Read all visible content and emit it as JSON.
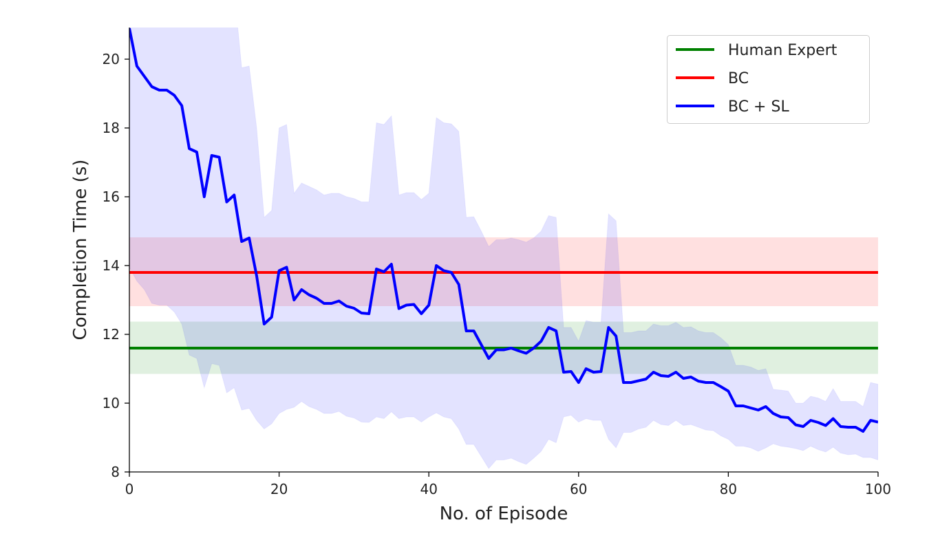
{
  "chart_data": {
    "type": "line",
    "title": "",
    "xlabel": "No. of Episode",
    "ylabel": "Completion Time (s)",
    "xlim": [
      0,
      100
    ],
    "ylim": [
      8,
      20.92
    ],
    "xticks": [
      0,
      20,
      40,
      60,
      80,
      100
    ],
    "yticks": [
      8,
      10,
      12,
      14,
      16,
      18,
      20
    ],
    "grid": false,
    "legend_position": "top-right",
    "colors": {
      "human": "#008000",
      "bc": "#ff0000",
      "bcsl": "#0000ff"
    },
    "constant_series": [
      {
        "name": "Human Expert",
        "mean": 11.6,
        "lower": 10.85,
        "upper": 12.37
      },
      {
        "name": "BC",
        "mean": 13.8,
        "lower": 12.82,
        "upper": 14.82
      }
    ],
    "series": [
      {
        "name": "BC + SL",
        "x_start": 0,
        "mean": [
          20.9,
          19.8,
          19.5,
          19.2,
          19.1,
          19.1,
          18.95,
          18.65,
          17.4,
          17.3,
          16.0,
          17.2,
          17.15,
          15.85,
          16.05,
          14.7,
          14.8,
          13.7,
          12.3,
          12.5,
          13.85,
          13.95,
          13.0,
          13.3,
          13.15,
          13.05,
          12.9,
          12.9,
          12.97,
          12.82,
          12.76,
          12.62,
          12.6,
          13.9,
          13.82,
          14.04,
          12.75,
          12.85,
          12.87,
          12.6,
          12.85,
          14.0,
          13.85,
          13.8,
          13.45,
          12.1,
          12.1,
          11.7,
          11.3,
          11.55,
          11.55,
          11.6,
          11.52,
          11.45,
          11.6,
          11.8,
          12.2,
          12.1,
          10.9,
          10.92,
          10.6,
          11.0,
          10.9,
          10.92,
          12.2,
          11.95,
          10.6,
          10.6,
          10.65,
          10.7,
          10.9,
          10.8,
          10.78,
          10.9,
          10.72,
          10.76,
          10.64,
          10.6,
          10.6,
          10.48,
          10.35,
          9.92,
          9.92,
          9.86,
          9.8,
          9.9,
          9.7,
          9.6,
          9.58,
          9.37,
          9.32,
          9.5,
          9.44,
          9.35,
          9.55,
          9.32,
          9.3,
          9.3,
          9.18,
          9.5,
          9.45
        ],
        "upper": [
          23,
          23,
          23,
          23,
          23,
          23,
          23,
          23,
          23,
          23,
          23,
          23,
          23,
          23,
          22,
          19.75,
          19.8,
          18.0,
          15.4,
          15.6,
          18.0,
          18.1,
          16.1,
          16.4,
          16.3,
          16.2,
          16.05,
          16.1,
          16.1,
          16.0,
          15.95,
          15.85,
          15.85,
          18.15,
          18.1,
          18.35,
          16.05,
          16.12,
          16.12,
          15.92,
          16.1,
          18.3,
          18.15,
          18.12,
          17.9,
          15.4,
          15.42,
          15.0,
          14.55,
          14.75,
          14.75,
          14.8,
          14.75,
          14.68,
          14.8,
          15.0,
          15.45,
          15.4,
          12.2,
          12.2,
          11.8,
          12.4,
          12.35,
          12.35,
          15.5,
          15.3,
          12.05,
          12.05,
          12.1,
          12.1,
          12.3,
          12.25,
          12.25,
          12.35,
          12.2,
          12.22,
          12.1,
          12.05,
          12.05,
          11.9,
          11.7,
          11.1,
          11.1,
          11.05,
          10.95,
          11.0,
          10.4,
          10.38,
          10.35,
          10.0,
          10.0,
          10.2,
          10.15,
          10.05,
          10.42,
          10.05,
          10.05,
          10.05,
          9.9,
          10.6,
          10.55
        ],
        "lower": [
          13.95,
          13.55,
          13.3,
          12.9,
          12.85,
          12.85,
          12.65,
          12.3,
          11.4,
          11.3,
          10.45,
          11.15,
          11.1,
          10.3,
          10.45,
          9.8,
          9.85,
          9.5,
          9.25,
          9.4,
          9.7,
          9.82,
          9.88,
          10.05,
          9.9,
          9.82,
          9.7,
          9.7,
          9.76,
          9.62,
          9.57,
          9.45,
          9.44,
          9.6,
          9.55,
          9.75,
          9.55,
          9.6,
          9.6,
          9.45,
          9.6,
          9.72,
          9.6,
          9.55,
          9.25,
          8.8,
          8.8,
          8.45,
          8.1,
          8.35,
          8.35,
          8.4,
          8.3,
          8.22,
          8.4,
          8.6,
          8.95,
          8.85,
          9.6,
          9.65,
          9.45,
          9.55,
          9.5,
          9.5,
          8.95,
          8.7,
          9.15,
          9.15,
          9.25,
          9.3,
          9.5,
          9.38,
          9.35,
          9.5,
          9.35,
          9.38,
          9.3,
          9.22,
          9.2,
          9.05,
          8.95,
          8.75,
          8.75,
          8.7,
          8.6,
          8.7,
          8.82,
          8.75,
          8.72,
          8.68,
          8.62,
          8.75,
          8.65,
          8.58,
          8.72,
          8.55,
          8.5,
          8.52,
          8.42,
          8.42,
          8.35
        ]
      }
    ],
    "legend": [
      "Human Expert",
      "BC",
      "BC + SL"
    ]
  }
}
